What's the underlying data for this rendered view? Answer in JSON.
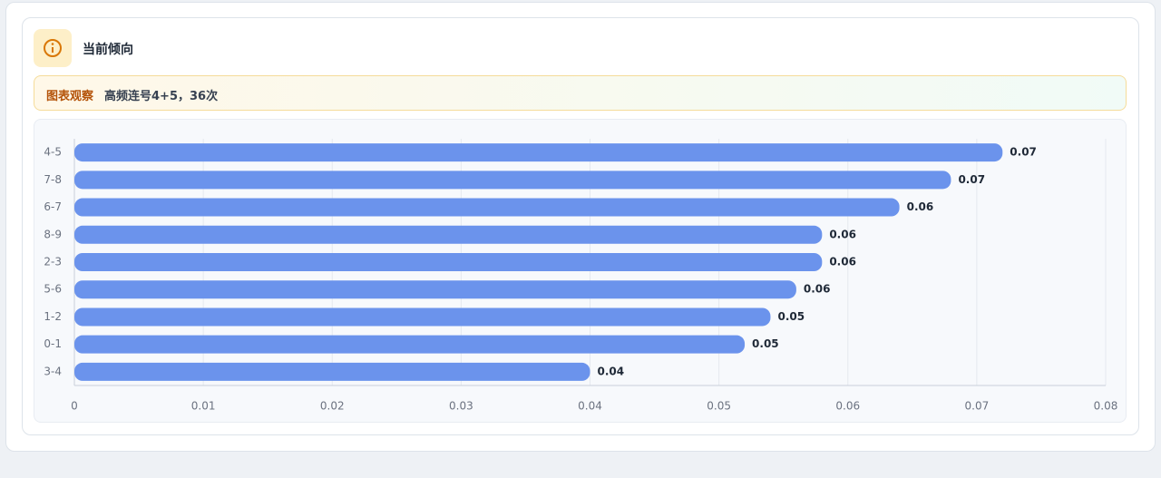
{
  "header": {
    "title": "当前倾向"
  },
  "insight": {
    "label": "图表观察",
    "text": "高频连号4+5，36次"
  },
  "chart_data": {
    "type": "bar",
    "orientation": "horizontal",
    "categories": [
      "4-5",
      "7-8",
      "6-7",
      "8-9",
      "2-3",
      "5-6",
      "1-2",
      "0-1",
      "3-4"
    ],
    "values": [
      0.072,
      0.068,
      0.064,
      0.058,
      0.058,
      0.056,
      0.054,
      0.052,
      0.04
    ],
    "value_labels": [
      "0.07",
      "0.07",
      "0.06",
      "0.06",
      "0.06",
      "0.06",
      "0.05",
      "0.05",
      "0.04"
    ],
    "color": "#6b93ec",
    "xlim": [
      0,
      0.08
    ],
    "xticks": [
      0,
      0.01,
      0.02,
      0.03,
      0.04,
      0.05,
      0.06,
      0.07,
      0.08
    ],
    "grid": true
  }
}
